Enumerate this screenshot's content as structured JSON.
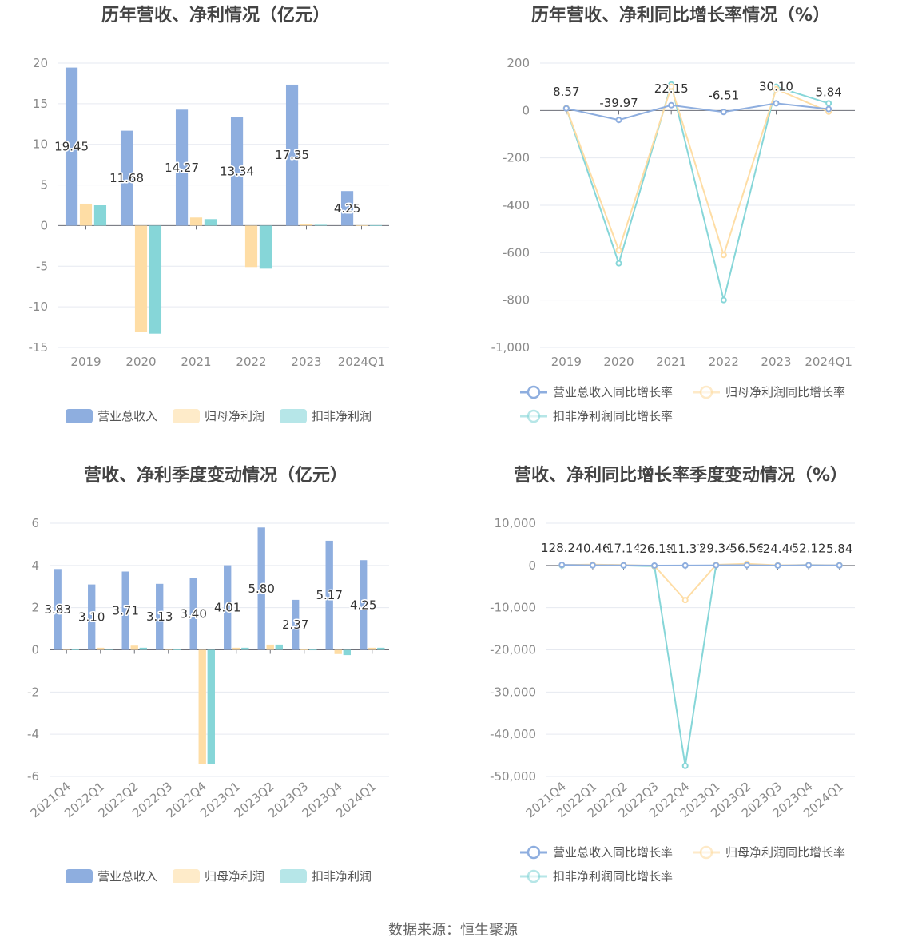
{
  "source_label": "数据来源：恒生聚源",
  "colors": {
    "revenue": "#8eaedf",
    "netprofit": "#fedda5",
    "deducted": "#86d6d8",
    "grid": "#e6e9f0",
    "axis": "#6e7079"
  },
  "chart_data": [
    {
      "type": "bar",
      "title": "历年营收、净利情况（亿元）",
      "categories": [
        "2019",
        "2020",
        "2021",
        "2022",
        "2023",
        "2024Q1"
      ],
      "ylim": [
        -15,
        20
      ],
      "yticks": [
        "20",
        "15",
        "10",
        "5",
        "0",
        "-5",
        "-10",
        "-15"
      ],
      "legend_position": "bottom",
      "series": [
        {
          "name": "营业总收入",
          "values": [
            19.45,
            11.68,
            14.27,
            13.34,
            17.35,
            4.25
          ],
          "labels": [
            "19.45",
            "11.68",
            "14.27",
            "13.34",
            "17.35",
            "4.25"
          ]
        },
        {
          "name": "归母净利润",
          "values": [
            2.7,
            -13.1,
            1.0,
            -5.1,
            0.2,
            0.05
          ]
        },
        {
          "name": "扣非净利润",
          "values": [
            2.5,
            -13.3,
            0.8,
            -5.3,
            0.1,
            0.05
          ]
        }
      ]
    },
    {
      "type": "line",
      "title": "历年营收、净利同比增长率情况（%）",
      "categories": [
        "2019",
        "2020",
        "2021",
        "2022",
        "2023",
        "2024Q1"
      ],
      "ylim": [
        -1000,
        200
      ],
      "yticks": [
        "200",
        "0",
        "-200",
        "-400",
        "-600",
        "-800",
        "-1,000"
      ],
      "legend_position": "bottom",
      "series": [
        {
          "name": "营业总收入同比增长率",
          "values": [
            8.57,
            -39.97,
            22.15,
            -6.51,
            30.1,
            5.84
          ],
          "labels": [
            "8.57",
            "-39.97",
            "22.15",
            "-6.51",
            "30.10",
            "5.84"
          ]
        },
        {
          "name": "归母净利润同比增长率",
          "values": [
            10,
            -590,
            100,
            -610,
            90,
            -5
          ]
        },
        {
          "name": "扣非净利润同比增长率",
          "values": [
            10,
            -645,
            110,
            -800,
            100,
            30
          ]
        }
      ]
    },
    {
      "type": "bar",
      "title": "营收、净利季度变动情况（亿元）",
      "categories": [
        "2021Q4",
        "2022Q1",
        "2022Q2",
        "2022Q3",
        "2022Q4",
        "2023Q1",
        "2023Q2",
        "2023Q3",
        "2023Q4",
        "2024Q1"
      ],
      "ylim": [
        -6,
        6
      ],
      "yticks": [
        "6",
        "4",
        "2",
        "0",
        "-2",
        "-4",
        "-6"
      ],
      "legend_position": "bottom",
      "series": [
        {
          "name": "营业总收入",
          "values": [
            3.83,
            3.1,
            3.71,
            3.13,
            3.4,
            4.01,
            5.8,
            2.37,
            5.17,
            4.25
          ],
          "labels": [
            "3.83",
            "3.10",
            "3.71",
            "3.13",
            "3.40",
            "4.01",
            "5.80",
            "2.37",
            "5.17",
            "4.25"
          ]
        },
        {
          "name": "归母净利润",
          "values": [
            0.05,
            0.1,
            0.2,
            0.05,
            -5.4,
            0.1,
            0.25,
            0.02,
            -0.2,
            0.1
          ]
        },
        {
          "name": "扣非净利润",
          "values": [
            0.02,
            0.05,
            0.1,
            0.02,
            -5.4,
            0.1,
            0.25,
            0.01,
            -0.25,
            0.1
          ]
        }
      ]
    },
    {
      "type": "line",
      "title": "营收、净利同比增长率季度变动情况（%）",
      "categories": [
        "2021Q4",
        "2022Q1",
        "2022Q2",
        "2022Q3",
        "2022Q4",
        "2023Q1",
        "2023Q2",
        "2023Q3",
        "2023Q4",
        "2024Q1"
      ],
      "ylim": [
        -50000,
        10000
      ],
      "yticks": [
        "10,000",
        "0",
        "-10,000",
        "-20,000",
        "-30,000",
        "-40,000",
        "-50,000"
      ],
      "legend_position": "bottom",
      "series": [
        {
          "name": "营业总收入同比增长率",
          "values": [
            128.24,
            40.46,
            17.14,
            -26.18,
            -11.37,
            29.34,
            56.56,
            -24.4,
            52.12,
            5.84
          ],
          "labels": [
            "128.24",
            "40.46",
            "17.14",
            "-26.18",
            "-11.37",
            "29.34",
            "56.56",
            "-24.40",
            "52.12",
            "5.84"
          ]
        },
        {
          "name": "归母净利润同比增长率",
          "values": [
            100,
            200,
            100,
            -100,
            -8200,
            150,
            400,
            50,
            100,
            50
          ]
        },
        {
          "name": "扣非净利润同比增长率",
          "values": [
            0,
            100,
            0,
            -200,
            -47500,
            100,
            200,
            0,
            100,
            50
          ]
        }
      ]
    }
  ]
}
